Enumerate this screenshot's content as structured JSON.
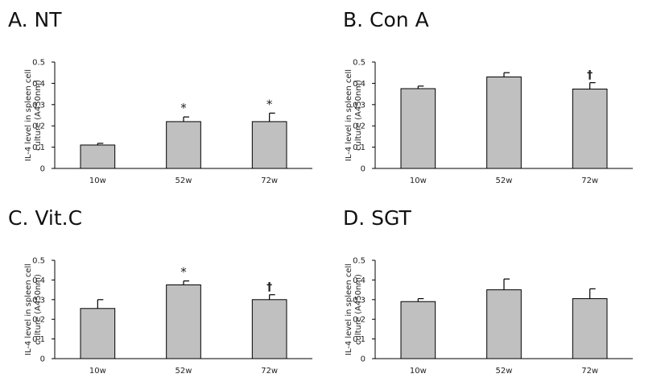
{
  "chart_data": [
    {
      "type": "bar",
      "title": "A. NT",
      "ylabel": "IL-4 level in spleen cell\nculture (A450nm)",
      "categories": [
        "10w",
        "52w",
        "72w"
      ],
      "values": [
        0.11,
        0.22,
        0.22
      ],
      "errors": [
        0.008,
        0.022,
        0.04
      ],
      "markers": [
        "",
        "*",
        "*"
      ],
      "ylim": [
        0,
        0.5
      ],
      "yticks": [
        "0",
        "0.1",
        "0.2",
        "0.3",
        "0.4",
        "0.5"
      ],
      "bar_color": "#c0c0c0",
      "grid": false
    },
    {
      "type": "bar",
      "title": "B. Con A",
      "ylabel": "IL-4 level in spleen cell\nculture (A450nm)",
      "categories": [
        "10w",
        "52w",
        "72w"
      ],
      "values": [
        0.375,
        0.43,
        0.373
      ],
      "errors": [
        0.012,
        0.02,
        0.03
      ],
      "markers": [
        "",
        "",
        "†"
      ],
      "ylim": [
        0,
        0.5
      ],
      "yticks": [
        "0",
        "0.1",
        "0.2",
        "0.3",
        "0.4",
        "0.5"
      ],
      "bar_color": "#c0c0c0",
      "grid": false
    },
    {
      "type": "bar",
      "title": "C. Vit.C",
      "ylabel": "IL-4 level in spleen cell\nculture (A450nm)",
      "categories": [
        "10w",
        "52w",
        "72w"
      ],
      "values": [
        0.255,
        0.375,
        0.3
      ],
      "errors": [
        0.045,
        0.02,
        0.025
      ],
      "markers": [
        "",
        "*",
        "†"
      ],
      "ylim": [
        0,
        0.5
      ],
      "yticks": [
        "0",
        "0.1",
        "0.2",
        "0.3",
        "0.4",
        "0.5"
      ],
      "bar_color": "#c0c0c0",
      "grid": false
    },
    {
      "type": "bar",
      "title": "D. SGT",
      "ylabel": "IL-4 level in spleen cell\nculture (A450nm)",
      "categories": [
        "10w",
        "52w",
        "72w"
      ],
      "values": [
        0.29,
        0.35,
        0.305
      ],
      "errors": [
        0.015,
        0.055,
        0.05
      ],
      "markers": [
        "",
        "",
        ""
      ],
      "ylim": [
        0,
        0.5
      ],
      "yticks": [
        "0",
        "0.1",
        "0.2",
        "0.3",
        "0.4",
        "0.5"
      ],
      "bar_color": "#c0c0c0",
      "grid": false
    }
  ]
}
